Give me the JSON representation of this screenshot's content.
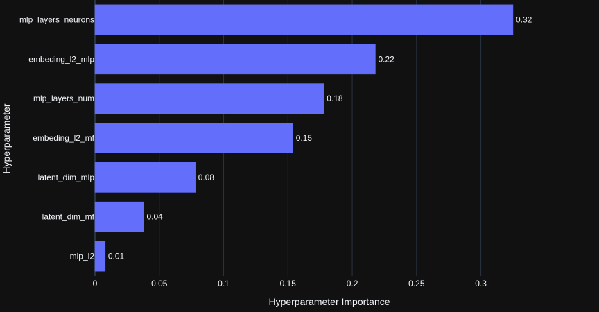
{
  "chart_data": {
    "type": "bar",
    "orientation": "horizontal",
    "title": "",
    "xlabel": "Hyperparameter Importance",
    "ylabel": "Hyperparameter",
    "categories": [
      "mlp_layers_neurons",
      "embeding_l2_mlp",
      "mlp_layers_num",
      "embeding_l2_mf",
      "latent_dim_mlp",
      "latent_dim_mf",
      "mlp_l2"
    ],
    "values": [
      0.325,
      0.218,
      0.178,
      0.154,
      0.078,
      0.038,
      0.008
    ],
    "value_labels": [
      "0.32",
      "0.22",
      "0.18",
      "0.15",
      "0.08",
      "0.04",
      "0.01"
    ],
    "xlim": [
      0,
      0.3455
    ],
    "xticks": [
      0,
      0.05,
      0.1,
      0.15,
      0.2,
      0.25,
      0.3
    ],
    "xtick_labels": [
      "0",
      "0.05",
      "0.1",
      "0.15",
      "0.2",
      "0.25",
      "0.3"
    ],
    "grid": true,
    "legend": "none",
    "colors": {
      "background": "#111111",
      "bar_fill": "#636efa",
      "bar_stroke": "#636efa",
      "text": "#f2f5fa",
      "grid": "#283442"
    }
  }
}
